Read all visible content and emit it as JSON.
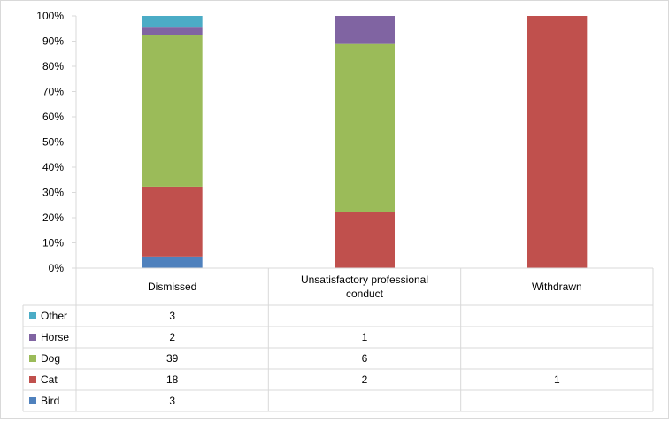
{
  "chart_data": {
    "type": "bar",
    "stacked": true,
    "percent_stacked": true,
    "categories": [
      "Dismissed",
      "Unsatisfactory professional conduct",
      "Withdrawn"
    ],
    "category_lines": [
      [
        "Dismissed"
      ],
      [
        "Unsatisfactory professional",
        "conduct"
      ],
      [
        "Withdrawn"
      ]
    ],
    "series": [
      {
        "name": "Bird",
        "color": "#4F81BD",
        "values": [
          3,
          null,
          null
        ]
      },
      {
        "name": "Cat",
        "color": "#C0504D",
        "values": [
          18,
          2,
          1
        ]
      },
      {
        "name": "Dog",
        "color": "#9BBB59",
        "values": [
          39,
          6,
          null
        ]
      },
      {
        "name": "Horse",
        "color": "#8064A2",
        "values": [
          2,
          1,
          null
        ]
      },
      {
        "name": "Other",
        "color": "#4BACC6",
        "values": [
          3,
          null,
          null
        ]
      }
    ],
    "table_row_order": [
      "Other",
      "Horse",
      "Dog",
      "Cat",
      "Bird"
    ],
    "y_ticks": [
      "0%",
      "10%",
      "20%",
      "30%",
      "40%",
      "50%",
      "60%",
      "70%",
      "80%",
      "90%",
      "100%"
    ],
    "ylim": [
      0,
      100
    ],
    "grid": false,
    "legend": "data-table"
  }
}
